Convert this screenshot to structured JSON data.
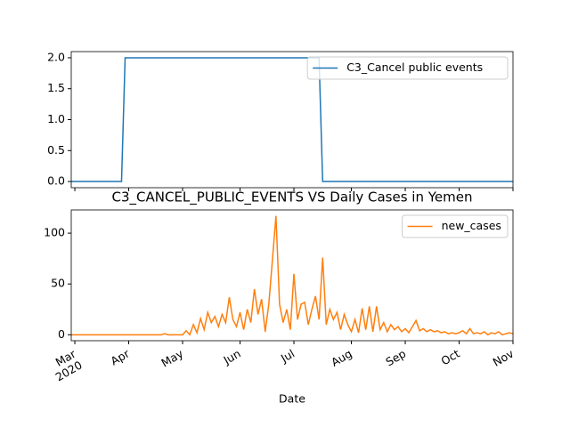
{
  "chart_data": [
    {
      "type": "line",
      "series": [
        {
          "name": "C3_Cancel public events",
          "color": "#1f77b4",
          "values": [
            0,
            0,
            0,
            0,
            0,
            0,
            0,
            0,
            0,
            0,
            0,
            0,
            0,
            0,
            0,
            2,
            2,
            2,
            2,
            2,
            2,
            2,
            2,
            2,
            2,
            2,
            2,
            2,
            2,
            2,
            2,
            2,
            2,
            2,
            2,
            2,
            2,
            2,
            2,
            2,
            2,
            2,
            2,
            2,
            2,
            2,
            2,
            2,
            2,
            2,
            2,
            2,
            2,
            2,
            2,
            2,
            2,
            2,
            2,
            2,
            2,
            2,
            2,
            2,
            2,
            2,
            2,
            2,
            2,
            2,
            0,
            0,
            0,
            0,
            0,
            0,
            0,
            0,
            0,
            0,
            0,
            0,
            0,
            0,
            0,
            0,
            0,
            0,
            0,
            0,
            0,
            0,
            0,
            0,
            0,
            0,
            0,
            0,
            0,
            0,
            0,
            0,
            0,
            0,
            0,
            0,
            0,
            0,
            0,
            0,
            0,
            0,
            0,
            0,
            0,
            0,
            0,
            0,
            0,
            0,
            0,
            0,
            0,
            0
          ]
        }
      ],
      "ylim": [
        -0.1,
        2.1
      ],
      "yticks": [
        {
          "value": 0,
          "label": "0.0"
        },
        {
          "value": 0.5,
          "label": "0.5"
        },
        {
          "value": 1,
          "label": "1.0"
        },
        {
          "value": 1.5,
          "label": "1.5"
        },
        {
          "value": 2,
          "label": "2.0"
        }
      ],
      "legend": "upper right"
    },
    {
      "type": "line",
      "title": "C3_CANCEL_PUBLIC_EVENTS VS Daily Cases in Yemen",
      "xlabel": "Date",
      "categories": [
        null,
        "Mar\n2020",
        null,
        null,
        null,
        null,
        null,
        null,
        null,
        null,
        null,
        null,
        null,
        null,
        null,
        null,
        "Apr",
        null,
        null,
        null,
        null,
        null,
        null,
        null,
        null,
        null,
        null,
        null,
        null,
        null,
        null,
        "May",
        null,
        null,
        null,
        null,
        null,
        null,
        null,
        null,
        null,
        null,
        null,
        null,
        null,
        null,
        null,
        "Jun",
        null,
        null,
        null,
        null,
        null,
        null,
        null,
        null,
        null,
        null,
        null,
        null,
        null,
        null,
        "Jul",
        null,
        null,
        null,
        null,
        null,
        null,
        null,
        null,
        null,
        null,
        null,
        null,
        null,
        null,
        null,
        "Aug",
        null,
        null,
        null,
        null,
        null,
        null,
        null,
        null,
        null,
        null,
        null,
        null,
        null,
        null,
        "Sep",
        null,
        null,
        null,
        null,
        null,
        null,
        null,
        null,
        null,
        null,
        null,
        null,
        null,
        null,
        "Oct",
        null,
        null,
        null,
        null,
        null,
        null,
        null,
        null,
        null,
        null,
        null,
        null,
        null,
        null,
        "Nov"
      ],
      "series": [
        {
          "name": "new_cases",
          "color": "#ff7f0e",
          "values": [
            0,
            0,
            0,
            0,
            0,
            0,
            0,
            0,
            0,
            0,
            0,
            0,
            0,
            0,
            0,
            0,
            0,
            0,
            0,
            0,
            0,
            0,
            0,
            0,
            0,
            0,
            1,
            0,
            0,
            0,
            0,
            0,
            4,
            0,
            10,
            2,
            16,
            5,
            22,
            12,
            18,
            8,
            20,
            12,
            37,
            15,
            8,
            22,
            5,
            25,
            12,
            45,
            20,
            35,
            3,
            30,
            73,
            117,
            30,
            12,
            25,
            5,
            60,
            15,
            30,
            32,
            10,
            25,
            38,
            15,
            76,
            10,
            25,
            15,
            22,
            5,
            20,
            10,
            3,
            15,
            2,
            26,
            5,
            28,
            3,
            28,
            5,
            12,
            3,
            10,
            5,
            8,
            3,
            6,
            2,
            8,
            14,
            4,
            6,
            3,
            5,
            3,
            4,
            2,
            3,
            1,
            2,
            1,
            2,
            4,
            1,
            6,
            1,
            2,
            1,
            3,
            0,
            2,
            1,
            3,
            0,
            1,
            2,
            1
          ]
        }
      ],
      "ylim": [
        -5.85,
        122.85
      ],
      "yticks": [
        0,
        50,
        100
      ],
      "legend": "upper right"
    }
  ]
}
